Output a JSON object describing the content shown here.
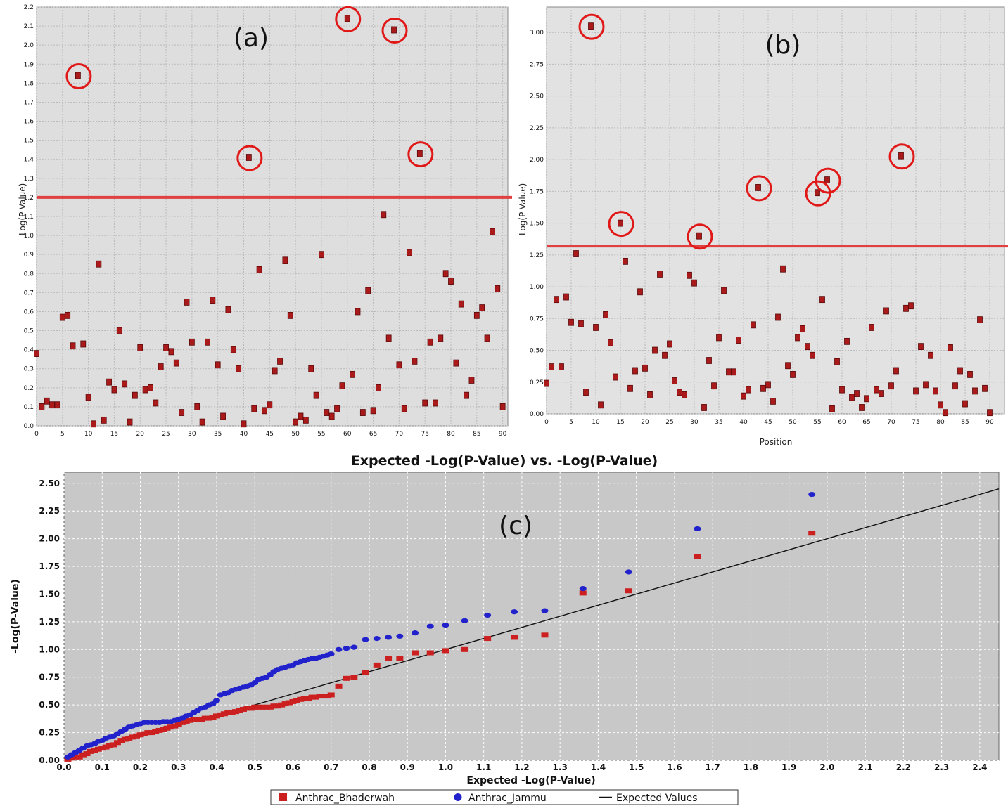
{
  "chart_data": [
    {
      "id": "a",
      "type": "scatter",
      "panel_label": "(a)",
      "xlabel": "",
      "ylabel": "-Log(P-Value)",
      "xlim": [
        0,
        91
      ],
      "ylim": [
        0,
        2.2
      ],
      "xticks": [
        "0",
        "5",
        "10",
        "15",
        "20",
        "25",
        "30",
        "35",
        "40",
        "45",
        "50",
        "55",
        "60",
        "65",
        "70",
        "75",
        "80",
        "85",
        "90"
      ],
      "yticks": [
        "0.0",
        "0.1",
        "0.2",
        "0.3",
        "0.4",
        "0.5",
        "0.6",
        "0.7",
        "0.8",
        "0.9",
        "1.0",
        "1.1",
        "1.2",
        "1.3",
        "1.4",
        "1.5",
        "1.6",
        "1.7",
        "1.8",
        "1.9",
        "2.0",
        "2.1",
        "2.2"
      ],
      "threshold": 1.2,
      "marker_color": "#aa1a1a",
      "threshold_color": "#e04040",
      "grid": true,
      "x": [
        0,
        1,
        2,
        3,
        4,
        5,
        6,
        7,
        8,
        9,
        10,
        11,
        12,
        13,
        14,
        15,
        16,
        17,
        18,
        19,
        20,
        21,
        22,
        23,
        24,
        25,
        26,
        27,
        28,
        29,
        30,
        31,
        32,
        33,
        34,
        35,
        36,
        37,
        38,
        39,
        40,
        41,
        42,
        43,
        44,
        45,
        46,
        47,
        48,
        49,
        50,
        51,
        52,
        53,
        54,
        55,
        56,
        57,
        58,
        59,
        60,
        61,
        62,
        63,
        64,
        65,
        66,
        67,
        68,
        69,
        70,
        71,
        72,
        73,
        74,
        75,
        76,
        77,
        78,
        79,
        80,
        81,
        82,
        83,
        84,
        85,
        86,
        87,
        88,
        89,
        90
      ],
      "y": [
        0.38,
        0.1,
        0.13,
        0.11,
        0.11,
        0.57,
        0.58,
        0.42,
        1.84,
        0.43,
        0.15,
        0.01,
        0.85,
        0.03,
        0.23,
        0.19,
        0.5,
        0.22,
        0.02,
        0.16,
        0.41,
        0.19,
        0.2,
        0.12,
        0.31,
        0.41,
        0.39,
        0.33,
        0.07,
        0.65,
        0.44,
        0.1,
        0.02,
        0.44,
        0.66,
        0.32,
        0.05,
        0.61,
        0.4,
        0.3,
        0.01,
        1.41,
        0.09,
        0.82,
        0.08,
        0.11,
        0.29,
        0.34,
        0.87,
        0.58,
        0.02,
        0.05,
        0.03,
        0.3,
        0.16,
        0.9,
        0.07,
        0.05,
        0.09,
        0.21,
        2.14,
        0.27,
        0.6,
        0.07,
        0.71,
        0.08,
        0.2,
        1.11,
        0.46,
        2.08,
        0.32,
        0.09,
        0.91,
        0.34,
        1.43,
        0.12,
        0.44,
        0.12,
        0.46,
        0.8,
        0.76,
        0.33,
        0.64,
        0.16,
        0.24,
        0.58,
        0.62,
        0.46,
        1.02,
        0.72,
        0.1
      ],
      "highlighted": [
        8,
        41,
        60,
        69,
        74
      ]
    },
    {
      "id": "b",
      "type": "scatter",
      "panel_label": "(b)",
      "xlabel": "Position",
      "ylabel": "-Log(P-Value)",
      "xlim": [
        0,
        93
      ],
      "ylim": [
        0,
        3.2
      ],
      "xticks": [
        "0",
        "5",
        "10",
        "15",
        "20",
        "25",
        "30",
        "35",
        "40",
        "45",
        "50",
        "55",
        "60",
        "65",
        "70",
        "75",
        "80",
        "85",
        "90"
      ],
      "yticks": [
        "0.00",
        "0.25",
        "0.50",
        "0.75",
        "1.00",
        "1.25",
        "1.50",
        "1.75",
        "2.00",
        "2.25",
        "2.50",
        "2.75",
        "3.00"
      ],
      "threshold": 1.32,
      "marker_color": "#aa1a1a",
      "threshold_color": "#e04040",
      "grid": true,
      "x": [
        0,
        1,
        2,
        3,
        4,
        5,
        6,
        7,
        8,
        9,
        10,
        11,
        12,
        13,
        14,
        15,
        16,
        17,
        18,
        19,
        20,
        21,
        22,
        23,
        24,
        25,
        26,
        27,
        28,
        29,
        30,
        31,
        32,
        33,
        34,
        35,
        36,
        37,
        38,
        39,
        40,
        41,
        42,
        43,
        44,
        45,
        46,
        47,
        48,
        49,
        50,
        51,
        52,
        53,
        54,
        55,
        56,
        57,
        58,
        59,
        60,
        61,
        62,
        63,
        64,
        65,
        66,
        67,
        68,
        69,
        70,
        71,
        72,
        73,
        74,
        75,
        76,
        77,
        78,
        79,
        80,
        81,
        82,
        83,
        84,
        85,
        86,
        87,
        88,
        89,
        90
      ],
      "y": [
        0.24,
        0.37,
        0.9,
        0.37,
        0.92,
        0.72,
        1.26,
        0.71,
        0.17,
        3.05,
        0.68,
        0.07,
        0.78,
        0.56,
        0.29,
        1.5,
        1.2,
        0.2,
        0.34,
        0.96,
        0.36,
        0.15,
        0.5,
        1.1,
        0.46,
        0.55,
        0.26,
        0.17,
        0.15,
        1.09,
        1.03,
        1.4,
        0.05,
        0.42,
        0.22,
        0.6,
        0.97,
        0.33,
        0.33,
        0.58,
        0.14,
        0.19,
        0.7,
        1.78,
        0.2,
        0.23,
        0.1,
        0.76,
        1.14,
        0.38,
        0.31,
        0.6,
        0.67,
        0.53,
        0.46,
        1.74,
        0.9,
        1.84,
        0.04,
        0.41,
        0.19,
        0.57,
        0.13,
        0.16,
        0.05,
        0.12,
        0.68,
        0.19,
        0.16,
        0.81,
        0.22,
        0.34,
        2.03,
        0.83,
        0.85,
        0.18,
        0.53,
        0.23,
        0.46,
        0.18,
        0.07,
        0.01,
        0.52,
        0.22,
        0.34,
        0.08,
        0.31,
        0.18,
        0.74,
        0.2,
        0.01
      ],
      "highlighted": [
        9,
        15,
        31,
        43,
        55,
        57,
        72
      ]
    },
    {
      "id": "c",
      "type": "scatter",
      "panel_label": "(c)",
      "title": "Expected -Log(P-Value) vs. -Log(P-Value)",
      "xlabel": "Expected -Log(P-Value)",
      "ylabel": "-Log(P-Value)",
      "xlim": [
        0,
        2.45
      ],
      "ylim": [
        0,
        2.6
      ],
      "xticks": [
        "0.0",
        "0.1",
        "0.2",
        "0.3",
        "0.4",
        "0.5",
        "0.6",
        "0.7",
        "0.8",
        "0.9",
        "1.0",
        "1.1",
        "1.2",
        "1.3",
        "1.4",
        "1.5",
        "1.6",
        "1.7",
        "1.8",
        "1.9",
        "2.0",
        "2.1",
        "2.2",
        "2.3",
        "2.4"
      ],
      "yticks": [
        "0.00",
        "0.25",
        "0.50",
        "0.75",
        "1.00",
        "1.25",
        "1.50",
        "1.75",
        "2.00",
        "2.25",
        "2.50"
      ],
      "legend_position": "bottom",
      "grid": true,
      "series": [
        {
          "name": "Anthrac_Bhaderwah",
          "marker": "square",
          "color": "#cc2020",
          "x": [
            0.01,
            0.02,
            0.03,
            0.04,
            0.05,
            0.06,
            0.07,
            0.08,
            0.09,
            0.1,
            0.11,
            0.12,
            0.13,
            0.14,
            0.15,
            0.16,
            0.17,
            0.18,
            0.19,
            0.2,
            0.21,
            0.22,
            0.23,
            0.24,
            0.25,
            0.26,
            0.27,
            0.28,
            0.29,
            0.3,
            0.31,
            0.32,
            0.33,
            0.34,
            0.35,
            0.36,
            0.37,
            0.38,
            0.39,
            0.4,
            0.41,
            0.42,
            0.43,
            0.44,
            0.45,
            0.46,
            0.47,
            0.48,
            0.49,
            0.5,
            0.51,
            0.52,
            0.53,
            0.54,
            0.55,
            0.56,
            0.57,
            0.58,
            0.59,
            0.6,
            0.61,
            0.62,
            0.63,
            0.64,
            0.65,
            0.66,
            0.67,
            0.68,
            0.69,
            0.7,
            0.72,
            0.74,
            0.76,
            0.79,
            0.82,
            0.85,
            0.88,
            0.92,
            0.96,
            1.0,
            1.05,
            1.11,
            1.18,
            1.26,
            1.36,
            1.48,
            1.66,
            1.96
          ],
          "y": [
            0.01,
            0.02,
            0.03,
            0.03,
            0.05,
            0.06,
            0.08,
            0.09,
            0.1,
            0.11,
            0.12,
            0.13,
            0.14,
            0.16,
            0.18,
            0.19,
            0.2,
            0.21,
            0.22,
            0.23,
            0.24,
            0.25,
            0.25,
            0.26,
            0.27,
            0.28,
            0.29,
            0.3,
            0.31,
            0.32,
            0.34,
            0.35,
            0.36,
            0.37,
            0.37,
            0.37,
            0.38,
            0.38,
            0.39,
            0.4,
            0.41,
            0.42,
            0.43,
            0.43,
            0.44,
            0.45,
            0.46,
            0.47,
            0.47,
            0.48,
            0.48,
            0.48,
            0.48,
            0.48,
            0.49,
            0.49,
            0.5,
            0.51,
            0.52,
            0.53,
            0.54,
            0.55,
            0.56,
            0.56,
            0.57,
            0.57,
            0.58,
            0.58,
            0.58,
            0.59,
            0.67,
            0.74,
            0.75,
            0.79,
            0.86,
            0.92,
            0.92,
            0.97,
            0.97,
            0.99,
            1.0,
            1.1,
            1.11,
            1.13,
            1.51,
            1.53,
            1.84,
            2.05
          ]
        },
        {
          "name": "Anthrac_Jammu",
          "marker": "circle",
          "color": "#2222cc",
          "x": [
            0.01,
            0.02,
            0.03,
            0.04,
            0.05,
            0.06,
            0.07,
            0.08,
            0.09,
            0.1,
            0.11,
            0.12,
            0.13,
            0.14,
            0.15,
            0.16,
            0.17,
            0.18,
            0.19,
            0.2,
            0.21,
            0.22,
            0.23,
            0.24,
            0.25,
            0.26,
            0.27,
            0.28,
            0.29,
            0.3,
            0.31,
            0.32,
            0.33,
            0.34,
            0.35,
            0.36,
            0.37,
            0.38,
            0.39,
            0.4,
            0.41,
            0.42,
            0.43,
            0.44,
            0.45,
            0.46,
            0.47,
            0.48,
            0.49,
            0.5,
            0.51,
            0.52,
            0.53,
            0.54,
            0.55,
            0.56,
            0.57,
            0.58,
            0.59,
            0.6,
            0.61,
            0.62,
            0.63,
            0.64,
            0.65,
            0.66,
            0.67,
            0.68,
            0.69,
            0.7,
            0.72,
            0.74,
            0.76,
            0.79,
            0.82,
            0.85,
            0.88,
            0.92,
            0.96,
            1.0,
            1.05,
            1.11,
            1.18,
            1.26,
            1.36,
            1.48,
            1.66,
            1.96
          ],
          "y": [
            0.03,
            0.05,
            0.07,
            0.09,
            0.11,
            0.13,
            0.14,
            0.15,
            0.17,
            0.18,
            0.2,
            0.21,
            0.22,
            0.24,
            0.26,
            0.28,
            0.3,
            0.31,
            0.32,
            0.33,
            0.34,
            0.34,
            0.34,
            0.34,
            0.34,
            0.35,
            0.35,
            0.35,
            0.36,
            0.37,
            0.38,
            0.4,
            0.41,
            0.43,
            0.45,
            0.47,
            0.48,
            0.5,
            0.51,
            0.54,
            0.59,
            0.6,
            0.61,
            0.63,
            0.64,
            0.65,
            0.66,
            0.67,
            0.68,
            0.7,
            0.73,
            0.74,
            0.75,
            0.77,
            0.8,
            0.82,
            0.83,
            0.84,
            0.85,
            0.86,
            0.88,
            0.89,
            0.9,
            0.91,
            0.92,
            0.92,
            0.93,
            0.94,
            0.95,
            0.96,
            1.0,
            1.01,
            1.02,
            1.09,
            1.1,
            1.11,
            1.12,
            1.15,
            1.21,
            1.22,
            1.26,
            1.31,
            1.34,
            1.35,
            1.55,
            1.7,
            2.09,
            2.4
          ]
        },
        {
          "name": "Expected Values",
          "type": "line",
          "color": "#111111",
          "x": [
            0.4,
            2.45
          ],
          "y": [
            0.4,
            2.45
          ]
        }
      ]
    }
  ]
}
